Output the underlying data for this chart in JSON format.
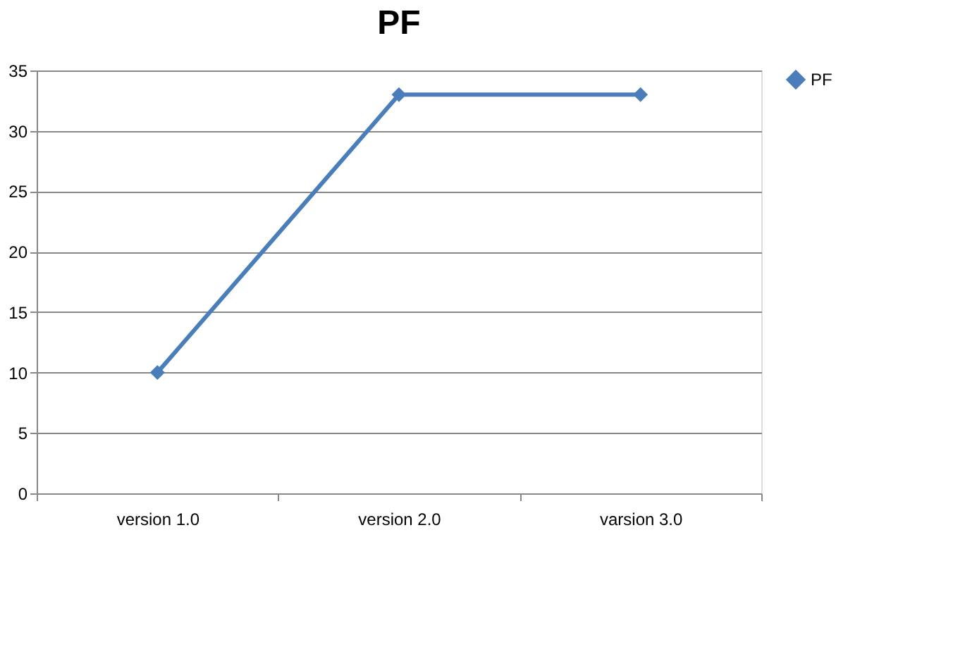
{
  "chart_data": {
    "type": "line",
    "title": "PF",
    "categories": [
      "version 1.0",
      "version 2.0",
      "varsion 3.0"
    ],
    "series": [
      {
        "name": "PF",
        "color": "#4a7ebb",
        "values": [
          10,
          33,
          33
        ]
      }
    ],
    "ylim": [
      0,
      35
    ],
    "yticks": [
      0,
      5,
      10,
      15,
      20,
      25,
      30,
      35
    ],
    "grid": "y",
    "legend": "right",
    "marker": "diamond",
    "line_style": "solid"
  }
}
